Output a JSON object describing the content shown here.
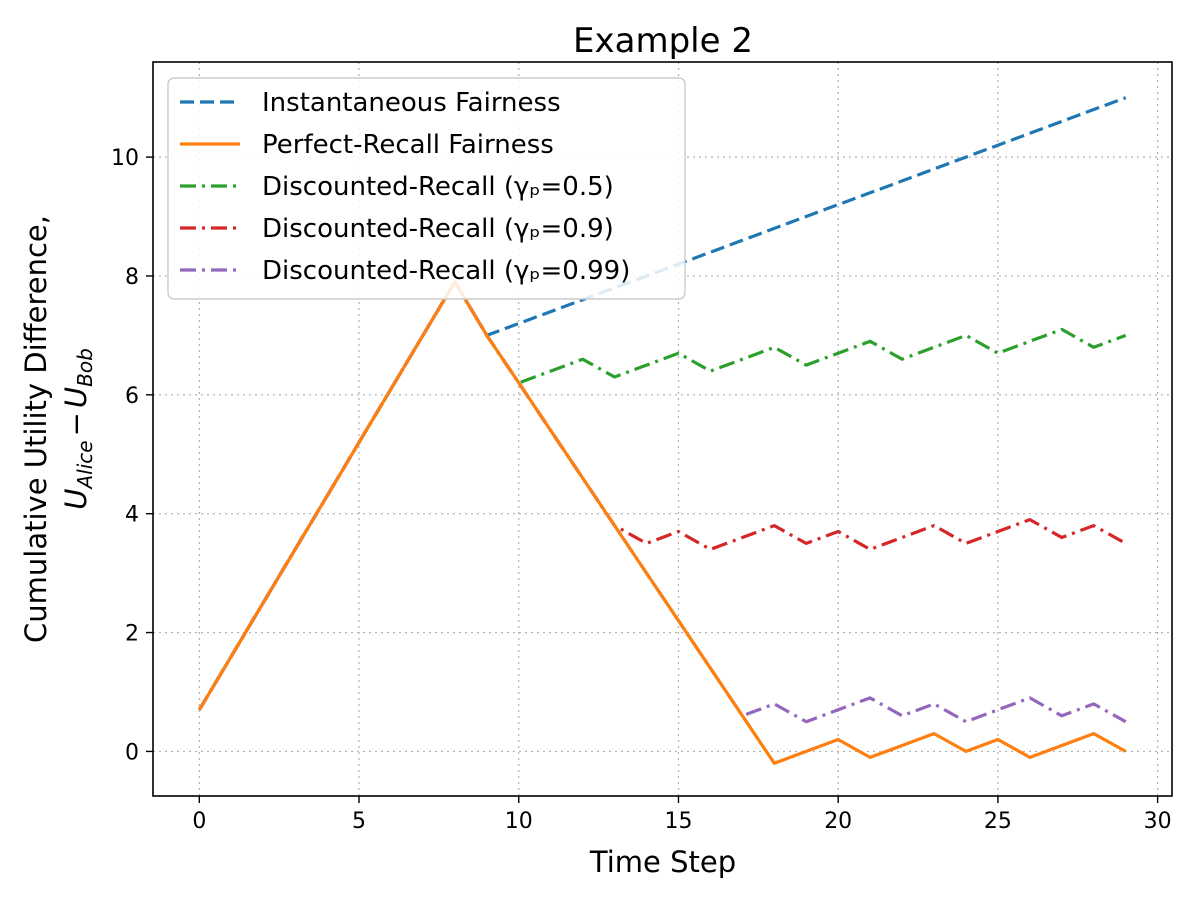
{
  "chart_data": {
    "type": "line",
    "title": "Example 2",
    "xlabel": "Time Step",
    "ylabel_line1": "Cumulative Utility Difference,",
    "ylabel_line2": {
      "u1": "U",
      "sub1": "Alice",
      "minus": "−",
      "u2": "U",
      "sub2": "Bob"
    },
    "xlim": [
      -1.45,
      30.45
    ],
    "ylim": [
      -0.75,
      11.6
    ],
    "xticks": [
      0,
      5,
      10,
      15,
      20,
      25,
      30
    ],
    "yticks": [
      0,
      2,
      4,
      6,
      8,
      10
    ],
    "grid": true,
    "legend_position": "upper-left",
    "x": [
      0,
      1,
      2,
      3,
      4,
      5,
      6,
      7,
      8,
      9,
      10,
      11,
      12,
      13,
      14,
      15,
      16,
      17,
      18,
      19,
      20,
      21,
      22,
      23,
      24,
      25,
      26,
      27,
      28,
      29
    ],
    "series": [
      {
        "name": "Instantaneous Fairness",
        "color": "#1f77b4",
        "style": "dashed",
        "values": [
          0.7,
          1.6,
          2.5,
          3.4,
          4.3,
          5.2,
          6.1,
          7.0,
          7.9,
          7.0,
          7.2,
          7.4,
          7.6,
          7.8,
          8.0,
          8.2,
          8.4,
          8.6,
          8.8,
          9.0,
          9.2,
          9.4,
          9.6,
          9.8,
          10.0,
          10.2,
          10.4,
          10.6,
          10.8,
          11.0
        ]
      },
      {
        "name": "Perfect-Recall Fairness",
        "color": "#ff7f0e",
        "style": "solid",
        "values": [
          0.7,
          1.6,
          2.5,
          3.4,
          4.3,
          5.2,
          6.1,
          7.0,
          7.9,
          7.0,
          6.2,
          5.4,
          4.6,
          3.8,
          3.0,
          2.2,
          1.4,
          0.6,
          -0.2,
          0.0,
          0.2,
          -0.1,
          0.1,
          0.3,
          0.0,
          0.2,
          -0.1,
          0.1,
          0.3,
          0.0
        ]
      },
      {
        "name": "Discounted-Recall (γₚ=0.5)",
        "color": "#2ca02c",
        "style": "dashdot",
        "values": [
          0.7,
          1.6,
          2.5,
          3.4,
          4.3,
          5.2,
          6.1,
          7.0,
          7.9,
          7.0,
          6.2,
          6.4,
          6.6,
          6.3,
          6.5,
          6.7,
          6.4,
          6.6,
          6.8,
          6.5,
          6.7,
          6.9,
          6.6,
          6.8,
          7.0,
          6.7,
          6.9,
          7.1,
          6.8,
          7.0
        ]
      },
      {
        "name": "Discounted-Recall (γₚ=0.9)",
        "color": "#d62728",
        "style": "dashdot",
        "values": [
          0.7,
          1.6,
          2.5,
          3.4,
          4.3,
          5.2,
          6.1,
          7.0,
          7.9,
          7.0,
          6.2,
          5.4,
          4.6,
          3.8,
          3.5,
          3.7,
          3.4,
          3.6,
          3.8,
          3.5,
          3.7,
          3.4,
          3.6,
          3.8,
          3.5,
          3.7,
          3.9,
          3.6,
          3.8,
          3.5
        ]
      },
      {
        "name": "Discounted-Recall (γₚ=0.99)",
        "color": "#9467bd",
        "style": "dashdot",
        "values": [
          0.7,
          1.6,
          2.5,
          3.4,
          4.3,
          5.2,
          6.1,
          7.0,
          7.9,
          7.0,
          6.2,
          5.4,
          4.6,
          3.8,
          3.0,
          2.2,
          1.4,
          0.6,
          0.8,
          0.5,
          0.7,
          0.9,
          0.6,
          0.8,
          0.5,
          0.7,
          0.9,
          0.6,
          0.8,
          0.5
        ]
      }
    ]
  }
}
